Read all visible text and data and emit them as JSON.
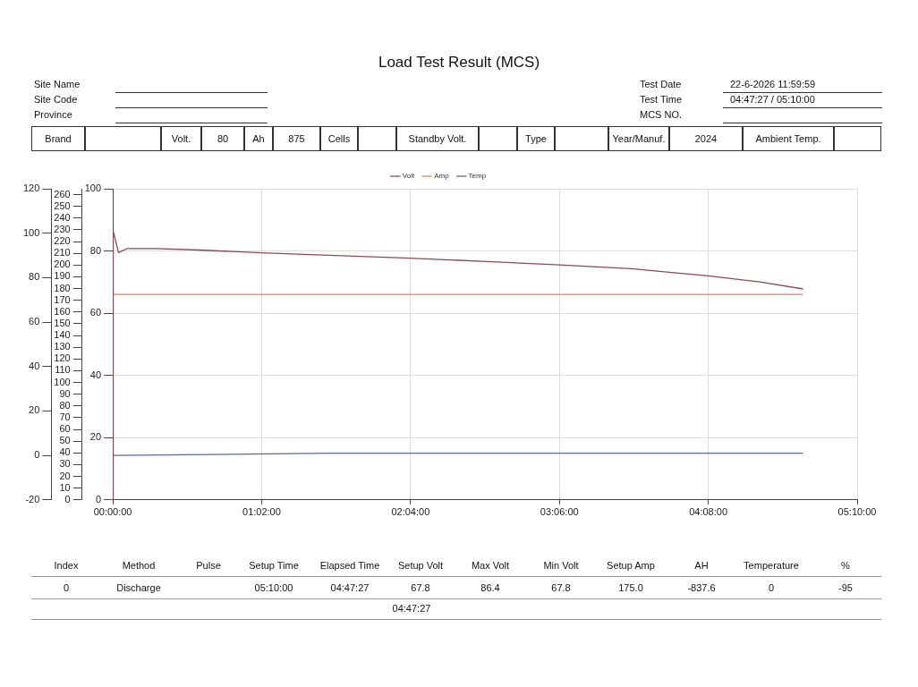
{
  "chart_data": {
    "type": "line",
    "title": "Load Test Result (MCS)",
    "xlim": [
      0,
      5.1667
    ],
    "xticks": [
      {
        "value": 0,
        "label": "00:00:00"
      },
      {
        "value": 1.0333,
        "label": "01:02:00"
      },
      {
        "value": 2.0667,
        "label": "02:04:00"
      },
      {
        "value": 3.1,
        "label": "03:06:00"
      },
      {
        "value": 4.1333,
        "label": "04:08:00"
      },
      {
        "value": 5.1667,
        "label": "05:10:00"
      }
    ],
    "ylim": [
      0,
      100
    ],
    "yticks": [
      0,
      20,
      40,
      60,
      80,
      100
    ],
    "y2lim": [
      0,
      265
    ],
    "y2ticks": [
      0,
      10,
      20,
      30,
      40,
      50,
      60,
      70,
      80,
      90,
      100,
      110,
      120,
      130,
      140,
      150,
      160,
      170,
      180,
      190,
      200,
      210,
      220,
      230,
      240,
      250,
      260
    ],
    "y3lim": [
      -20,
      120
    ],
    "y3ticks": [
      -20,
      0,
      20,
      40,
      60,
      80,
      100,
      120
    ],
    "grid": true,
    "legend": "top",
    "marker": "none",
    "line_style": "solid",
    "series": [
      {
        "name": "Volt",
        "color": "#8b4a4e",
        "axis": "y",
        "x": [
          0,
          0.003,
          0.04,
          0.1,
          0.3,
          0.6,
          1.0333,
          1.5,
          2.0667,
          2.6,
          3.1,
          3.6,
          4.1333,
          4.5,
          4.7908
        ],
        "values": [
          0,
          86.4,
          79.5,
          80.8,
          80.8,
          80.3,
          79.4,
          78.6,
          77.7,
          76.6,
          75.5,
          74.3,
          72.0,
          70.0,
          67.8
        ]
      },
      {
        "name": "Amp",
        "color": "#c98a5e",
        "axis": "y2",
        "x": [
          0.005,
          4.7908
        ],
        "values": [
          175,
          175
        ]
      },
      {
        "name": "Temp",
        "color": "#5c6a96",
        "axis": "y3",
        "x": [
          0,
          1.5,
          4.0,
          4.7908
        ],
        "values": [
          0,
          1,
          1,
          1
        ]
      }
    ],
    "annotations": [
      "Site Name",
      "Site Code",
      "Province",
      "Test Date",
      "22-6-2026 11:59:59",
      "Test Time",
      "04:47:27 / 05:10:00",
      "MCS NO.",
      "Brand",
      "Volt.",
      "80",
      "Ah",
      "875",
      "Cells",
      "Standby Volt.",
      "Type",
      "Year/Manuf.",
      "2024",
      "Ambient Temp.",
      "Index",
      "Method",
      "Pulse",
      "Setup Time",
      "Elapsed Time",
      "Setup Volt",
      "Max Volt",
      "Min Volt",
      "Setup Amp",
      "AH",
      "Temperature",
      "%",
      "0",
      "Discharge",
      "05:10:00",
      "04:47:27",
      "67.8",
      "86.4",
      "67.8",
      "175.0",
      "-837.6",
      "0",
      "-95",
      "04:47:27"
    ]
  }
}
